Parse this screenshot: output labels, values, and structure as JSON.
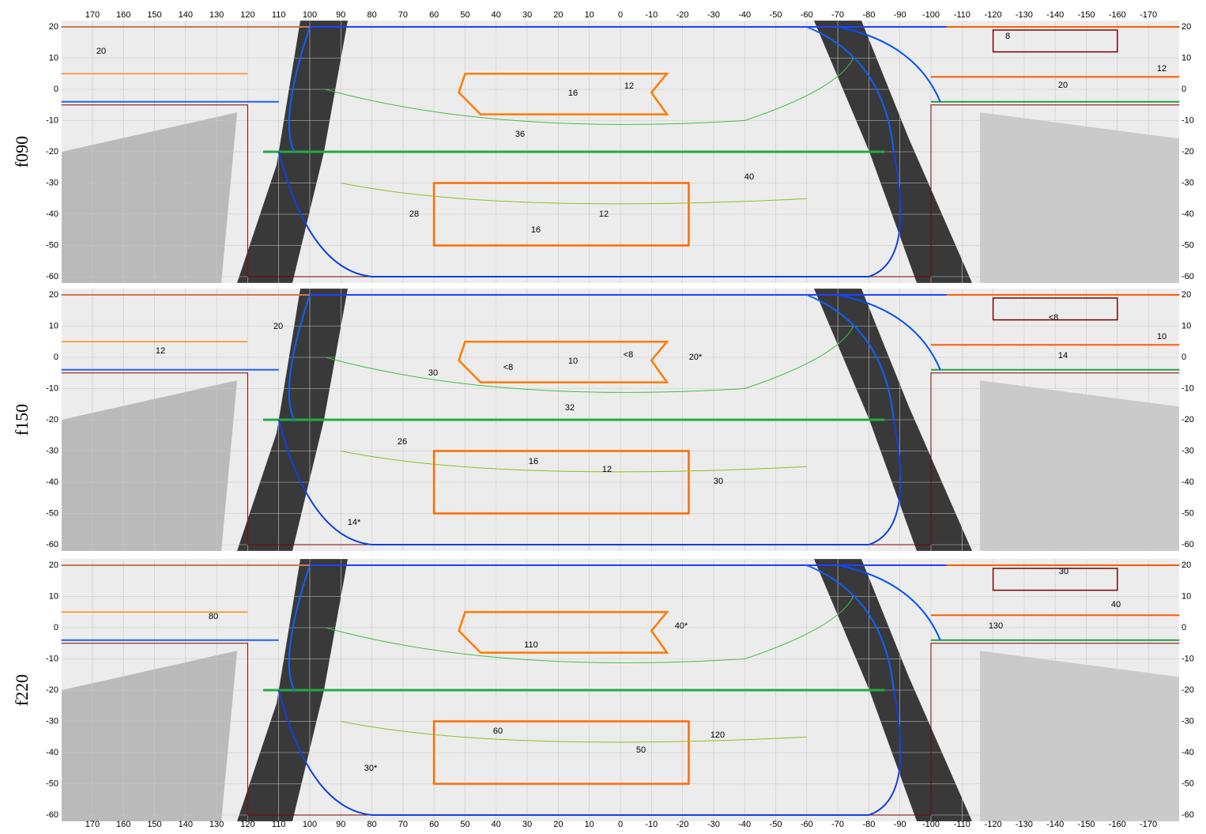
{
  "x_ticks": [
    170,
    160,
    150,
    140,
    130,
    120,
    110,
    100,
    90,
    80,
    70,
    60,
    50,
    40,
    30,
    20,
    10,
    0,
    -10,
    -20,
    -30,
    -40,
    -50,
    -60,
    -70,
    -80,
    -90,
    -100,
    -110,
    -120,
    -130,
    -140,
    -150,
    -160,
    -170
  ],
  "y_ticks": [
    20,
    10,
    0,
    -10,
    -20,
    -30,
    -40,
    -50,
    -60
  ],
  "panels": [
    {
      "name": "f090",
      "contour_labels": [
        "20",
        "8",
        "12",
        "20",
        "16",
        "12",
        "36",
        "40",
        "28",
        "12",
        "16"
      ]
    },
    {
      "name": "f150",
      "contour_labels": [
        "20",
        "<8",
        "10",
        "12",
        "<8",
        "10",
        "<8",
        "20*",
        "14",
        "30",
        "32",
        "26",
        "16",
        "12",
        "30",
        "14*"
      ]
    },
    {
      "name": "f220",
      "contour_labels": [
        "30",
        "40",
        "80",
        "40*",
        "130",
        "110",
        "60",
        "120",
        "50",
        "30*"
      ]
    }
  ]
}
